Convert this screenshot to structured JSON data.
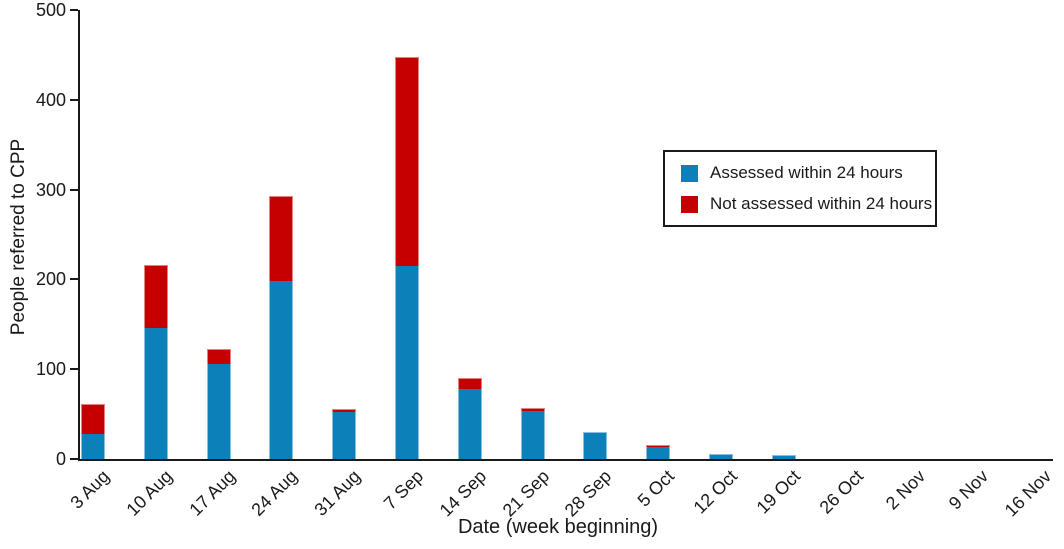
{
  "chart_data": {
    "type": "bar",
    "stacked": true,
    "xlabel": "Date (week beginning)",
    "ylabel": "People referred to CPP",
    "ylim": [
      0,
      500
    ],
    "yticks": [
      0,
      100,
      200,
      300,
      400,
      500
    ],
    "grid": false,
    "legend_position": "upper right",
    "categories": [
      "3 Aug",
      "10 Aug",
      "17 Aug",
      "24 Aug",
      "31 Aug",
      "7 Sep",
      "14 Sep",
      "21 Sep",
      "28 Sep",
      "5 Oct",
      "12 Oct",
      "19 Oct",
      "26 Oct",
      "2 Nov",
      "9 Nov",
      "16 Nov"
    ],
    "series": [
      {
        "name": "Assessed within 24 hours",
        "color": "#0c81b9",
        "values": [
          28,
          146,
          106,
          198,
          52,
          215,
          78,
          53,
          30,
          13,
          6,
          5,
          0,
          0,
          0,
          0
        ]
      },
      {
        "name": "Not assessed within 24 hours",
        "color": "#c60000",
        "values": [
          33,
          70,
          16,
          95,
          4,
          233,
          12,
          4,
          0,
          3,
          0,
          0,
          0,
          0,
          0,
          0
        ]
      }
    ]
  }
}
